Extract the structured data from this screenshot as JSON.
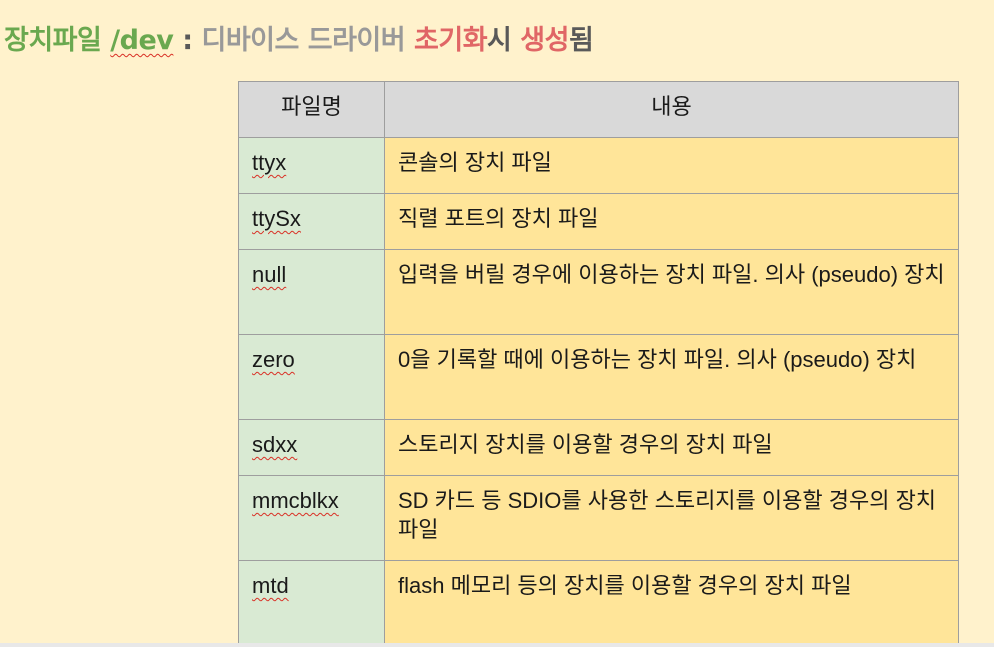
{
  "title": {
    "part1": "장치파일 ",
    "part2": "/dev",
    "part3": " : ",
    "part4": "디바이스 드라이버 ",
    "part5": "초기화",
    "part6": "시 ",
    "part7": "생성",
    "part8": "됨"
  },
  "table": {
    "headers": [
      "파일명",
      "내용"
    ],
    "rows": [
      {
        "name": "ttyx",
        "desc": "콘솔의 장치 파일"
      },
      {
        "name": "ttySx",
        "desc": "직렬 포트의 장치 파일"
      },
      {
        "name": "null",
        "desc": "입력을 버릴 경우에 이용하는 장치 파일. 의사 (pseudo) 장치"
      },
      {
        "name": "zero",
        "desc": "0을 기록할 때에 이용하는 장치 파일. 의사 (pseudo) 장치"
      },
      {
        "name": "sdxx",
        "desc": "스토리지 장치를 이용할 경우의 장치 파일"
      },
      {
        "name": "mmcblkx",
        "desc": "SD 카드 등 SDIO를 사용한 스토리지를 이용할 경우의 장치 파일"
      },
      {
        "name": "mtd",
        "desc": "flash 메모리 등의 장치를 이용할 경우의 장치 파일"
      }
    ]
  },
  "colors": {
    "background": "#fff2cc",
    "title_green": "#6aa84f",
    "title_gray": "#999999",
    "title_red": "#e06666",
    "header_bg": "#d9d9d9",
    "name_cell_bg": "#d9ead3",
    "desc_cell_bg": "#ffe599"
  }
}
